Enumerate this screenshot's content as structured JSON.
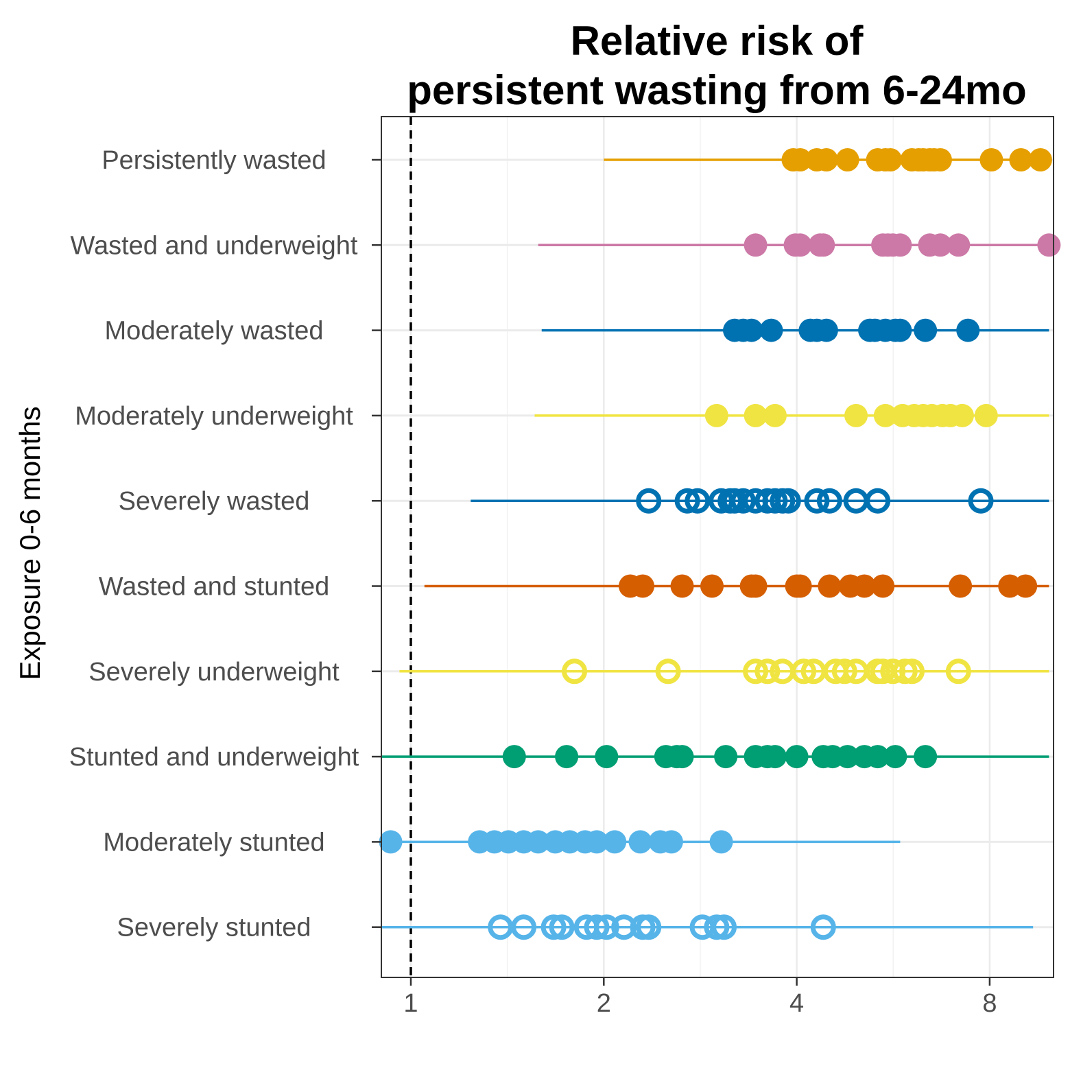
{
  "chart_data": {
    "type": "scatter",
    "title": "Relative risk of\npersistent wasting from 6-24mo",
    "xlabel": "",
    "ylabel": "Exposure 0-6 months",
    "x_scale": "log2",
    "xlim": [
      0.9,
      9.9
    ],
    "x_ticks": [
      1,
      2,
      4,
      8
    ],
    "grid": true,
    "legend": "none",
    "reference_line": 1,
    "series": [
      {
        "name": "Persistently wasted",
        "color": "#E69F00",
        "marker": "filled",
        "ci": [
          2.0,
          9.9
        ],
        "values": [
          3.95,
          4.05,
          4.3,
          4.45,
          4.8,
          5.35,
          5.5,
          5.6,
          6.05,
          6.2,
          6.3,
          6.45,
          6.55,
          6.7,
          8.05,
          8.95,
          9.6
        ]
      },
      {
        "name": "Wasted and underweight",
        "color": "#CC79A7",
        "marker": "filled",
        "ci": [
          1.58,
          9.9
        ],
        "values": [
          3.45,
          3.98,
          4.05,
          4.35,
          4.4,
          5.45,
          5.55,
          5.65,
          5.8,
          6.45,
          6.7,
          7.15,
          9.9
        ]
      },
      {
        "name": "Moderately wasted",
        "color": "#0072B2",
        "marker": "filled",
        "ci": [
          1.6,
          9.9
        ],
        "values": [
          3.2,
          3.3,
          3.4,
          3.65,
          4.2,
          4.3,
          4.45,
          5.2,
          5.3,
          5.5,
          5.7,
          5.8,
          6.35,
          7.4
        ]
      },
      {
        "name": "Moderately underweight",
        "color": "#F0E442",
        "marker": "filled",
        "ci": [
          1.56,
          9.9
        ],
        "values": [
          3.0,
          3.45,
          3.7,
          4.95,
          5.5,
          5.85,
          6.1,
          6.3,
          6.5,
          6.75,
          6.95,
          7.25,
          7.9
        ]
      },
      {
        "name": "Severely wasted",
        "color": "#0072B2",
        "marker": "open",
        "ci": [
          1.24,
          9.9
        ],
        "values": [
          2.35,
          2.7,
          2.8,
          3.05,
          3.15,
          3.2,
          3.3,
          3.45,
          3.6,
          3.7,
          3.8,
          3.88,
          4.3,
          4.5,
          4.95,
          5.35,
          7.75
        ]
      },
      {
        "name": "Wasted and stunted",
        "color": "#D55E00",
        "marker": "filled",
        "ci": [
          1.05,
          9.9
        ],
        "values": [
          2.2,
          2.3,
          2.65,
          2.95,
          3.4,
          3.45,
          4.0,
          4.05,
          4.5,
          4.85,
          5.1,
          5.45,
          7.2,
          8.6,
          9.1
        ]
      },
      {
        "name": "Severely underweight",
        "color": "#F0E442",
        "marker": "open",
        "ci": [
          0.96,
          9.9
        ],
        "values": [
          1.8,
          2.52,
          3.45,
          3.6,
          3.8,
          4.1,
          4.25,
          4.6,
          4.75,
          4.95,
          5.35,
          5.45,
          5.65,
          5.9,
          6.05,
          7.15
        ]
      },
      {
        "name": "Stunted and underweight",
        "color": "#009E73",
        "marker": "filled",
        "ci": [
          0.9,
          9.9
        ],
        "values": [
          1.45,
          1.75,
          2.02,
          2.5,
          2.6,
          2.65,
          3.1,
          3.45,
          3.6,
          3.7,
          4.0,
          4.4,
          4.55,
          4.8,
          5.1,
          5.35,
          5.7,
          6.35
        ]
      },
      {
        "name": "Moderately stunted",
        "color": "#56B4E9",
        "marker": "filled",
        "ci": [
          0.9,
          5.8
        ],
        "values": [
          0.93,
          1.28,
          1.35,
          1.42,
          1.5,
          1.58,
          1.68,
          1.77,
          1.87,
          1.95,
          2.08,
          2.28,
          2.45,
          2.55,
          3.05
        ]
      },
      {
        "name": "Severely stunted",
        "color": "#56B4E9",
        "marker": "open",
        "ci": [
          0.9,
          9.35
        ],
        "values": [
          1.38,
          1.5,
          1.67,
          1.72,
          1.88,
          1.95,
          2.02,
          2.15,
          2.3,
          2.35,
          2.85,
          3.0,
          3.08,
          4.4
        ]
      }
    ]
  }
}
